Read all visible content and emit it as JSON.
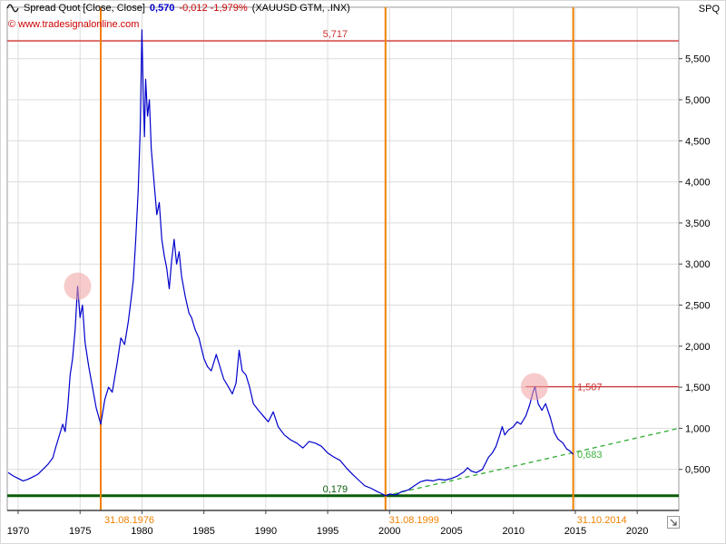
{
  "header": {
    "title": "Spread Quot [Close, Close]",
    "value": "0,570",
    "change": "-0,012 -1,979%",
    "symbols": "(XAUUSD GTM, .INX)",
    "copyright": "© www.tradesignalonline.com",
    "symbol_short": "SPQ"
  },
  "colors": {
    "series": "#0000cc",
    "grid": "#dcdcdc",
    "plot_border": "#9a9a9a",
    "axis_line": "#444444",
    "axis_text": "#000000",
    "marker_red": "#cc3333",
    "marker_orange": "#f08000",
    "support_green": "#0a5c0a",
    "trend_green": "#3cb03c",
    "highlight": "#f0a0a0"
  },
  "chart_data": {
    "type": "line",
    "title": "Spread Quot (XAUUSD GTM / .INX)",
    "x_range": [
      1969.12,
      2023.36
    ],
    "y_range": [
      0,
      6.126
    ],
    "x_ticks": [
      {
        "value": 1970,
        "label": "1970"
      },
      {
        "value": 1975,
        "label": "1975"
      },
      {
        "value": 1980,
        "label": "1980"
      },
      {
        "value": 1985,
        "label": "1985"
      },
      {
        "value": 1990,
        "label": "1990"
      },
      {
        "value": 1995,
        "label": "1995"
      },
      {
        "value": 2000,
        "label": "2000"
      },
      {
        "value": 2005,
        "label": "2005"
      },
      {
        "value": 2010,
        "label": "2010"
      },
      {
        "value": 2015,
        "label": "2015"
      },
      {
        "value": 2020,
        "label": "2020"
      }
    ],
    "y_ticks": [
      {
        "value": 0.5,
        "label": "0,500"
      },
      {
        "value": 1.0,
        "label": "1,000"
      },
      {
        "value": 1.5,
        "label": "1,500"
      },
      {
        "value": 2.0,
        "label": "2,000"
      },
      {
        "value": 2.5,
        "label": "2,500"
      },
      {
        "value": 3.0,
        "label": "3,000"
      },
      {
        "value": 3.5,
        "label": "3,500"
      },
      {
        "value": 4.0,
        "label": "4,000"
      },
      {
        "value": 4.5,
        "label": "4,500"
      },
      {
        "value": 5.0,
        "label": "5,000"
      },
      {
        "value": 5.5,
        "label": "5,500"
      }
    ],
    "series": [
      {
        "name": "spread-xauusd-gtm-inx",
        "points": [
          [
            1969.2,
            0.46
          ],
          [
            1969.6,
            0.42
          ],
          [
            1970,
            0.39
          ],
          [
            1970.4,
            0.36
          ],
          [
            1970.8,
            0.38
          ],
          [
            1971.2,
            0.41
          ],
          [
            1971.6,
            0.44
          ],
          [
            1972,
            0.5
          ],
          [
            1972.4,
            0.56
          ],
          [
            1972.8,
            0.64
          ],
          [
            1973,
            0.75
          ],
          [
            1973.3,
            0.9
          ],
          [
            1973.6,
            1.05
          ],
          [
            1973.8,
            0.96
          ],
          [
            1974,
            1.25
          ],
          [
            1974.2,
            1.65
          ],
          [
            1974.4,
            1.85
          ],
          [
            1974.6,
            2.2
          ],
          [
            1974.8,
            2.73
          ],
          [
            1975,
            2.35
          ],
          [
            1975.2,
            2.5
          ],
          [
            1975.4,
            2.05
          ],
          [
            1975.7,
            1.75
          ],
          [
            1976,
            1.5
          ],
          [
            1976.3,
            1.25
          ],
          [
            1976.67,
            1.05
          ],
          [
            1977,
            1.35
          ],
          [
            1977.3,
            1.5
          ],
          [
            1977.6,
            1.44
          ],
          [
            1978,
            1.8
          ],
          [
            1978.3,
            2.1
          ],
          [
            1978.6,
            2.02
          ],
          [
            1978.9,
            2.3
          ],
          [
            1979.1,
            2.55
          ],
          [
            1979.3,
            2.8
          ],
          [
            1979.5,
            3.3
          ],
          [
            1979.7,
            3.9
          ],
          [
            1979.85,
            4.6
          ],
          [
            1980,
            5.85
          ],
          [
            1980.1,
            5.1
          ],
          [
            1980.2,
            4.55
          ],
          [
            1980.3,
            5.25
          ],
          [
            1980.45,
            4.8
          ],
          [
            1980.6,
            5.0
          ],
          [
            1980.75,
            4.4
          ],
          [
            1981,
            3.95
          ],
          [
            1981.2,
            3.6
          ],
          [
            1981.4,
            3.75
          ],
          [
            1981.6,
            3.3
          ],
          [
            1981.8,
            3.1
          ],
          [
            1982,
            2.95
          ],
          [
            1982.2,
            2.7
          ],
          [
            1982.4,
            3.05
          ],
          [
            1982.6,
            3.3
          ],
          [
            1982.8,
            3.0
          ],
          [
            1983,
            3.15
          ],
          [
            1983.2,
            2.85
          ],
          [
            1983.5,
            2.6
          ],
          [
            1983.8,
            2.4
          ],
          [
            1984,
            2.35
          ],
          [
            1984.3,
            2.2
          ],
          [
            1984.6,
            2.1
          ],
          [
            1985,
            1.85
          ],
          [
            1985.3,
            1.75
          ],
          [
            1985.6,
            1.7
          ],
          [
            1986,
            1.9
          ],
          [
            1986.3,
            1.75
          ],
          [
            1986.6,
            1.6
          ],
          [
            1987,
            1.5
          ],
          [
            1987.3,
            1.42
          ],
          [
            1987.6,
            1.55
          ],
          [
            1987.85,
            1.95
          ],
          [
            1988.1,
            1.7
          ],
          [
            1988.4,
            1.65
          ],
          [
            1988.7,
            1.5
          ],
          [
            1989,
            1.3
          ],
          [
            1989.4,
            1.22
          ],
          [
            1989.8,
            1.15
          ],
          [
            1990.2,
            1.08
          ],
          [
            1990.6,
            1.2
          ],
          [
            1991,
            1.02
          ],
          [
            1991.5,
            0.92
          ],
          [
            1992,
            0.86
          ],
          [
            1992.5,
            0.82
          ],
          [
            1993,
            0.76
          ],
          [
            1993.5,
            0.84
          ],
          [
            1994,
            0.82
          ],
          [
            1994.5,
            0.78
          ],
          [
            1995,
            0.7
          ],
          [
            1995.5,
            0.65
          ],
          [
            1996,
            0.61
          ],
          [
            1996.5,
            0.52
          ],
          [
            1997,
            0.44
          ],
          [
            1997.5,
            0.37
          ],
          [
            1998,
            0.3
          ],
          [
            1998.5,
            0.27
          ],
          [
            1999,
            0.23
          ],
          [
            1999.3,
            0.21
          ],
          [
            1999.67,
            0.179
          ],
          [
            2000,
            0.2
          ],
          [
            2000.5,
            0.19
          ],
          [
            2001,
            0.23
          ],
          [
            2001.5,
            0.25
          ],
          [
            2002,
            0.3
          ],
          [
            2002.5,
            0.35
          ],
          [
            2003,
            0.37
          ],
          [
            2003.5,
            0.36
          ],
          [
            2004,
            0.38
          ],
          [
            2004.5,
            0.37
          ],
          [
            2005,
            0.39
          ],
          [
            2005.5,
            0.42
          ],
          [
            2006,
            0.47
          ],
          [
            2006.3,
            0.52
          ],
          [
            2006.6,
            0.48
          ],
          [
            2007,
            0.46
          ],
          [
            2007.5,
            0.5
          ],
          [
            2008,
            0.65
          ],
          [
            2008.3,
            0.7
          ],
          [
            2008.6,
            0.78
          ],
          [
            2008.9,
            0.92
          ],
          [
            2009.1,
            1.02
          ],
          [
            2009.3,
            0.92
          ],
          [
            2009.6,
            0.98
          ],
          [
            2010,
            1.02
          ],
          [
            2010.3,
            1.08
          ],
          [
            2010.6,
            1.05
          ],
          [
            2011,
            1.15
          ],
          [
            2011.3,
            1.28
          ],
          [
            2011.6,
            1.45
          ],
          [
            2011.75,
            1.507
          ],
          [
            2012,
            1.3
          ],
          [
            2012.3,
            1.22
          ],
          [
            2012.6,
            1.3
          ],
          [
            2013,
            1.12
          ],
          [
            2013.3,
            0.95
          ],
          [
            2013.6,
            0.87
          ],
          [
            2014,
            0.82
          ],
          [
            2014.3,
            0.75
          ],
          [
            2014.6,
            0.72
          ],
          [
            2014.83,
            0.683
          ]
        ]
      }
    ],
    "price_lines": [
      {
        "value": 5.717,
        "label": "5,717",
        "color_key": "marker_red",
        "width": 1.3,
        "from_year": null,
        "label_year": 1994.6,
        "label_pos": "above"
      },
      {
        "value": 1.507,
        "label": "1,507",
        "color_key": "marker_red",
        "width": 1.3,
        "from_year": 2011.0,
        "label_year": 2015.15,
        "label_pos": "middle"
      },
      {
        "value": 0.179,
        "label": "0,179",
        "color_key": "support_green",
        "width": 3,
        "from_year": null,
        "label_year": 1994.6,
        "label_pos": "above"
      }
    ],
    "date_lines": [
      {
        "year": 1976.67,
        "label": "31.08.1976"
      },
      {
        "year": 1999.67,
        "label": "31.08.1999"
      },
      {
        "year": 2014.83,
        "label": "31.10.2014"
      }
    ],
    "trend_line": {
      "x1": 1999.67,
      "y1": 0.179,
      "x2": 2023.36,
      "y2": 1.0
    },
    "annotations": [
      {
        "year": 2015.15,
        "value": 0.683,
        "label": "0,683",
        "color_key": "trend_green"
      }
    ],
    "highlights": [
      {
        "year": 1974.8,
        "value": 2.73,
        "r": 15
      },
      {
        "year": 2011.7,
        "value": 1.507,
        "r": 15
      }
    ],
    "grid": true,
    "legend_position": "top-left"
  }
}
